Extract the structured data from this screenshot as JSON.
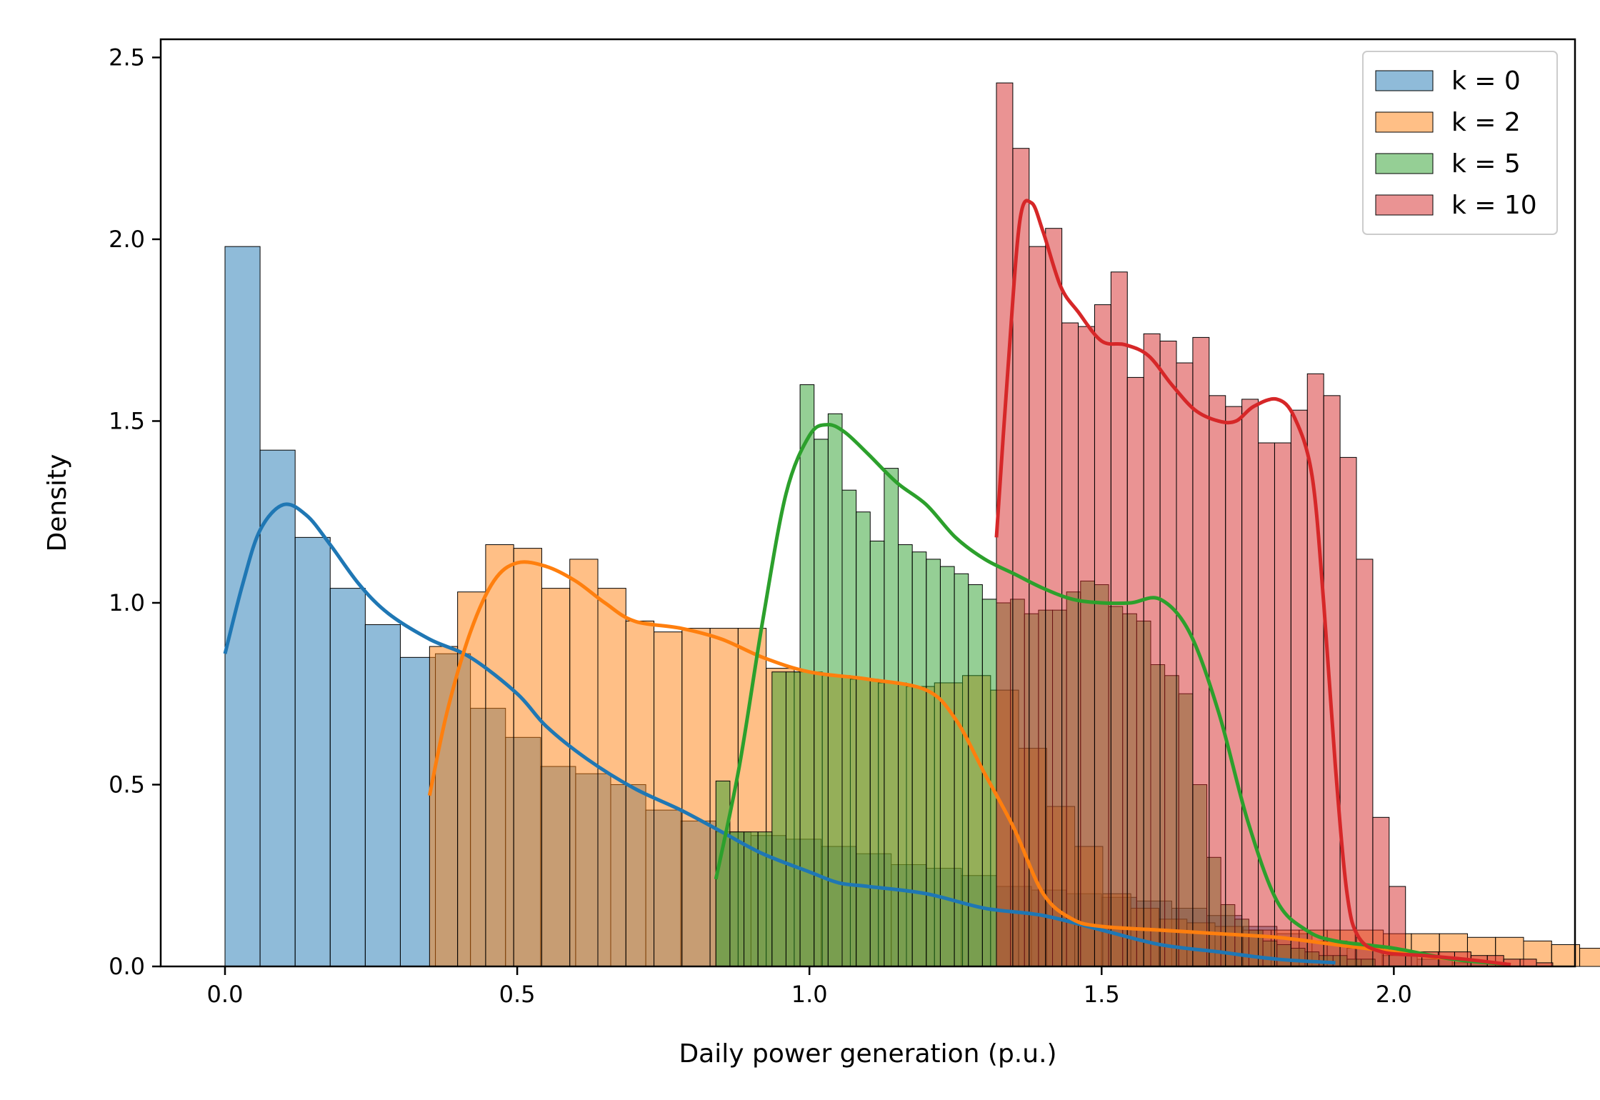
{
  "chart_data": {
    "type": "histogram",
    "xlabel": "Daily power generation (p.u.)",
    "ylabel": "Density",
    "xlim": [
      -0.11,
      2.31
    ],
    "ylim": [
      0,
      2.55
    ],
    "xticks": [
      "0.0",
      "0.5",
      "1.0",
      "1.5",
      "2.0"
    ],
    "yticks": [
      "0.0",
      "0.5",
      "1.0",
      "1.5",
      "2.0",
      "2.5"
    ],
    "legend": {
      "placement": "top-right",
      "entries": [
        "k = 0",
        "k = 2",
        "k = 5",
        "k = 10"
      ]
    },
    "series": [
      {
        "name": "k = 0",
        "color": "#1f77b4",
        "bin_start": 0.0,
        "bin_width": 0.06,
        "densities": [
          1.98,
          1.42,
          1.18,
          1.04,
          0.94,
          0.85,
          0.86,
          0.71,
          0.63,
          0.55,
          0.53,
          0.5,
          0.43,
          0.4,
          0.37,
          0.36,
          0.35,
          0.33,
          0.31,
          0.28,
          0.27,
          0.25,
          0.22,
          0.21,
          0.2,
          0.19,
          0.18,
          0.16,
          0.14,
          0.11,
          0.09,
          0.07,
          0.05,
          0.03,
          0.02,
          0.01
        ],
        "kde": [
          [
            0.0,
            0.86
          ],
          [
            0.03,
            1.05
          ],
          [
            0.06,
            1.2
          ],
          [
            0.1,
            1.27
          ],
          [
            0.14,
            1.24
          ],
          [
            0.18,
            1.16
          ],
          [
            0.23,
            1.05
          ],
          [
            0.28,
            0.97
          ],
          [
            0.35,
            0.9
          ],
          [
            0.42,
            0.85
          ],
          [
            0.5,
            0.75
          ],
          [
            0.55,
            0.66
          ],
          [
            0.62,
            0.57
          ],
          [
            0.7,
            0.49
          ],
          [
            0.78,
            0.43
          ],
          [
            0.85,
            0.37
          ],
          [
            0.92,
            0.31
          ],
          [
            1.0,
            0.26
          ],
          [
            1.05,
            0.23
          ],
          [
            1.1,
            0.22
          ],
          [
            1.2,
            0.2
          ],
          [
            1.3,
            0.16
          ],
          [
            1.4,
            0.14
          ],
          [
            1.5,
            0.1
          ],
          [
            1.6,
            0.06
          ],
          [
            1.7,
            0.04
          ],
          [
            1.8,
            0.02
          ],
          [
            1.9,
            0.01
          ]
        ]
      },
      {
        "name": "k = 2",
        "color": "#ff7f0e",
        "bin_start": 0.35,
        "bin_width": 0.048,
        "densities": [
          0.88,
          1.03,
          1.16,
          1.15,
          1.04,
          1.12,
          1.04,
          0.95,
          0.92,
          0.93,
          0.93,
          0.93,
          0.82,
          0.81,
          0.8,
          0.79,
          0.78,
          0.77,
          0.78,
          0.8,
          0.76,
          0.6,
          0.44,
          0.33,
          0.2,
          0.16,
          0.13,
          0.12,
          0.11,
          0.1,
          0.1,
          0.1,
          0.1,
          0.1,
          0.09,
          0.09,
          0.09,
          0.08,
          0.08,
          0.07,
          0.06,
          0.05,
          0.05,
          0.04,
          0.04,
          0.03,
          0.03,
          0.02,
          0.02
        ],
        "kde": [
          [
            0.35,
            0.47
          ],
          [
            0.38,
            0.7
          ],
          [
            0.42,
            0.92
          ],
          [
            0.46,
            1.06
          ],
          [
            0.5,
            1.11
          ],
          [
            0.55,
            1.1
          ],
          [
            0.6,
            1.06
          ],
          [
            0.65,
            1.0
          ],
          [
            0.7,
            0.95
          ],
          [
            0.78,
            0.93
          ],
          [
            0.85,
            0.9
          ],
          [
            0.92,
            0.85
          ],
          [
            1.0,
            0.81
          ],
          [
            1.1,
            0.79
          ],
          [
            1.2,
            0.76
          ],
          [
            1.25,
            0.68
          ],
          [
            1.3,
            0.53
          ],
          [
            1.35,
            0.38
          ],
          [
            1.4,
            0.2
          ],
          [
            1.45,
            0.13
          ],
          [
            1.5,
            0.11
          ],
          [
            1.6,
            0.1
          ],
          [
            1.7,
            0.09
          ],
          [
            1.8,
            0.08
          ],
          [
            1.9,
            0.06
          ],
          [
            2.0,
            0.04
          ],
          [
            2.1,
            0.02
          ],
          [
            2.2,
            0.005
          ]
        ]
      },
      {
        "name": "k = 5",
        "color": "#2ca02c",
        "bin_start": 0.84,
        "bin_width": 0.024,
        "densities": [
          0.51,
          0.37,
          0.37,
          0.37,
          0.81,
          0.81,
          1.6,
          1.45,
          1.52,
          1.31,
          1.25,
          1.17,
          1.37,
          1.16,
          1.14,
          1.12,
          1.1,
          1.08,
          1.05,
          1.01,
          1.0,
          1.01,
          0.97,
          0.98,
          0.98,
          1.03,
          1.06,
          1.05,
          0.99,
          0.97,
          0.95,
          0.83,
          0.8,
          0.75,
          0.5,
          0.3,
          0.17,
          0.13,
          0.1,
          0.07,
          0.06,
          0.05,
          0.04,
          0.03,
          0.03,
          0.02,
          0.02
        ],
        "kde": [
          [
            0.84,
            0.24
          ],
          [
            0.88,
            0.55
          ],
          [
            0.92,
            0.95
          ],
          [
            0.96,
            1.3
          ],
          [
            1.0,
            1.46
          ],
          [
            1.03,
            1.49
          ],
          [
            1.06,
            1.47
          ],
          [
            1.1,
            1.41
          ],
          [
            1.15,
            1.33
          ],
          [
            1.2,
            1.27
          ],
          [
            1.25,
            1.18
          ],
          [
            1.3,
            1.12
          ],
          [
            1.35,
            1.08
          ],
          [
            1.4,
            1.04
          ],
          [
            1.45,
            1.01
          ],
          [
            1.5,
            1.0
          ],
          [
            1.55,
            1.0
          ],
          [
            1.6,
            1.01
          ],
          [
            1.65,
            0.92
          ],
          [
            1.7,
            0.7
          ],
          [
            1.75,
            0.4
          ],
          [
            1.8,
            0.18
          ],
          [
            1.85,
            0.1
          ],
          [
            1.9,
            0.07
          ],
          [
            2.0,
            0.05
          ],
          [
            2.1,
            0.02
          ],
          [
            2.2,
            0.005
          ]
        ]
      },
      {
        "name": "k = 10",
        "color": "#d62728",
        "bin_start": 1.32,
        "bin_width": 0.028,
        "densities": [
          2.43,
          2.25,
          1.98,
          2.03,
          1.77,
          1.76,
          1.82,
          1.91,
          1.62,
          1.74,
          1.72,
          1.66,
          1.73,
          1.57,
          1.54,
          1.56,
          1.44,
          1.44,
          1.53,
          1.63,
          1.57,
          1.4,
          1.12,
          0.41,
          0.22,
          0.04,
          0.04,
          0.04,
          0.04,
          0.03,
          0.03,
          0.02,
          0.02,
          0.01
        ],
        "kde": [
          [
            1.32,
            1.18
          ],
          [
            1.34,
            1.65
          ],
          [
            1.36,
            2.05
          ],
          [
            1.38,
            2.1
          ],
          [
            1.4,
            2.02
          ],
          [
            1.43,
            1.87
          ],
          [
            1.46,
            1.8
          ],
          [
            1.5,
            1.72
          ],
          [
            1.54,
            1.71
          ],
          [
            1.58,
            1.68
          ],
          [
            1.62,
            1.6
          ],
          [
            1.66,
            1.53
          ],
          [
            1.7,
            1.5
          ],
          [
            1.73,
            1.5
          ],
          [
            1.76,
            1.54
          ],
          [
            1.8,
            1.56
          ],
          [
            1.83,
            1.51
          ],
          [
            1.86,
            1.35
          ],
          [
            1.88,
            1.0
          ],
          [
            1.9,
            0.55
          ],
          [
            1.92,
            0.2
          ],
          [
            1.94,
            0.08
          ],
          [
            1.98,
            0.04
          ],
          [
            2.05,
            0.03
          ],
          [
            2.12,
            0.02
          ],
          [
            2.2,
            0.005
          ]
        ]
      }
    ]
  }
}
